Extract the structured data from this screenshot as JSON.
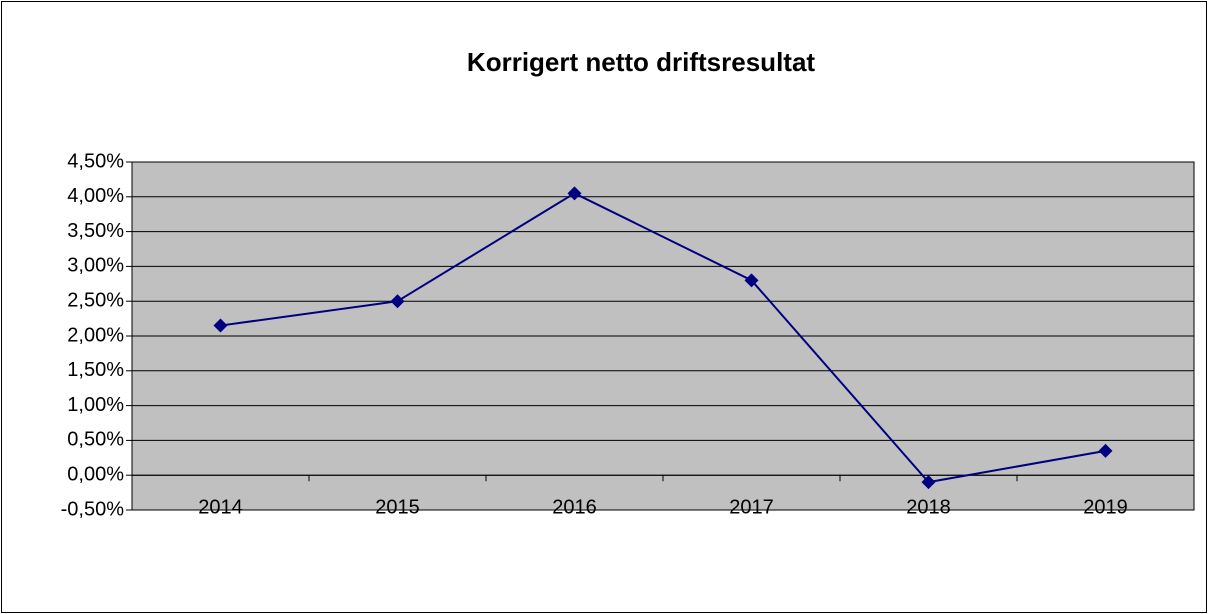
{
  "chart_data": {
    "type": "line",
    "title": "Korrigert netto driftsresultat",
    "categories": [
      "2014",
      "2015",
      "2016",
      "2017",
      "2018",
      "2019"
    ],
    "series": [
      {
        "name": "Korrigert netto driftsresultat",
        "color": "#000080",
        "values": [
          2.15,
          2.5,
          4.05,
          2.8,
          -0.1,
          0.35
        ]
      }
    ],
    "ylim": [
      -0.5,
      4.5
    ],
    "yticks": [
      {
        "value": -0.5,
        "label": "-0,50%"
      },
      {
        "value": 0,
        "label": "0,00%"
      },
      {
        "value": 0.5,
        "label": "0,50%"
      },
      {
        "value": 1,
        "label": "1,00%"
      },
      {
        "value": 1.5,
        "label": "1,50%"
      },
      {
        "value": 2,
        "label": "2,00%"
      },
      {
        "value": 2.5,
        "label": "2,50%"
      },
      {
        "value": 3,
        "label": "3,00%"
      },
      {
        "value": 3.5,
        "label": "3,50%"
      },
      {
        "value": 4,
        "label": "4,00%"
      },
      {
        "value": 4.5,
        "label": "4,50%"
      }
    ],
    "grid": true,
    "plot_background": "#c0c0c0"
  }
}
